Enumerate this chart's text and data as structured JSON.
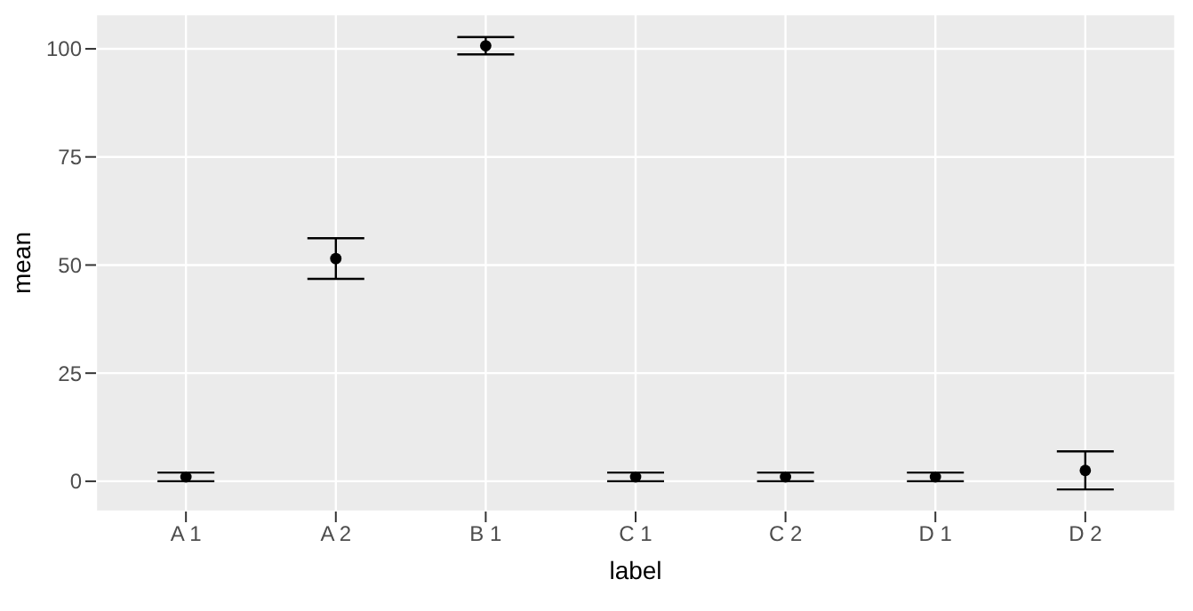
{
  "chart_data": {
    "type": "scatter",
    "xlabel": "label",
    "ylabel": "mean",
    "categories": [
      "A 1",
      "A 2",
      "B 1",
      "C 1",
      "C 2",
      "D 1",
      "D 2"
    ],
    "values": [
      1,
      51.5,
      100.7,
      1,
      1,
      1,
      2.5
    ],
    "errors": [
      1,
      4.7,
      2,
      1,
      1,
      1,
      4.4
    ],
    "color": "#000000",
    "marker": "circle",
    "ylim": [
      -7,
      108
    ],
    "yticks": [
      0,
      25,
      50,
      75,
      100
    ],
    "grid": true
  }
}
